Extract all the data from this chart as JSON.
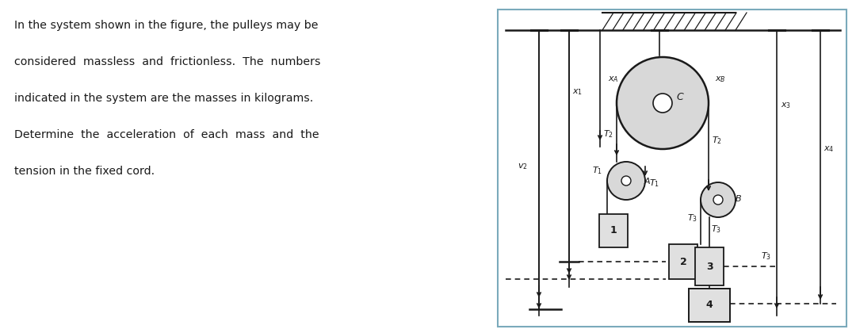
{
  "text_lines": [
    "In the system shown in the figure, the pulleys may be",
    "considered  massless  and  frictionless.  The  numbers",
    "indicated in the system are the masses in kilograms.",
    "Determine  the  acceleration  of  each  mass  and  the",
    "tension in the fixed cord."
  ],
  "bg": "#ffffff",
  "lc": "#1a1a1a",
  "box_edge": "#7aaabb",
  "mass_fill": "#e0e0e0",
  "pulley_fill": "#d8d8d8"
}
